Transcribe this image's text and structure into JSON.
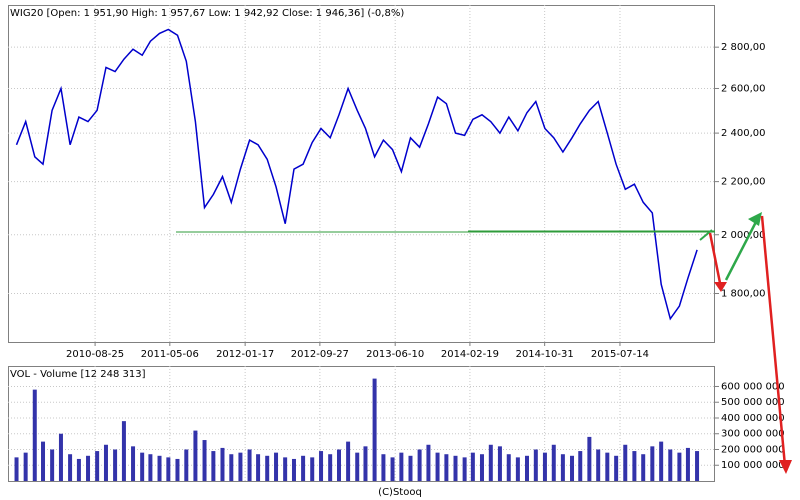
{
  "chart_data": [
    {
      "type": "line",
      "title": "WIG20 [Open: 1 951,90  High: 1 957,67  Low: 1 942,92  Close: 1 946,36] (-0,8%)",
      "color": "#0000cc",
      "log_scale": true,
      "grid": true,
      "x": [
        "2009-12-01",
        "2010-01-01",
        "2010-02-01",
        "2010-03-01",
        "2010-04-01",
        "2010-05-01",
        "2010-06-01",
        "2010-07-01",
        "2010-08-01",
        "2010-09-01",
        "2010-10-01",
        "2010-11-01",
        "2010-12-01",
        "2011-01-01",
        "2011-02-01",
        "2011-03-01",
        "2011-04-01",
        "2011-05-01",
        "2011-06-01",
        "2011-07-01",
        "2011-08-01",
        "2011-09-01",
        "2011-10-01",
        "2011-11-01",
        "2011-12-01",
        "2012-01-01",
        "2012-02-01",
        "2012-03-01",
        "2012-04-01",
        "2012-05-01",
        "2012-06-01",
        "2012-07-01",
        "2012-08-01",
        "2012-09-01",
        "2012-10-01",
        "2012-11-01",
        "2012-12-01",
        "2013-01-01",
        "2013-02-01",
        "2013-03-01",
        "2013-04-01",
        "2013-05-01",
        "2013-06-01",
        "2013-07-01",
        "2013-08-01",
        "2013-09-01",
        "2013-10-01",
        "2013-11-01",
        "2013-12-01",
        "2014-01-01",
        "2014-02-01",
        "2014-03-01",
        "2014-04-01",
        "2014-05-01",
        "2014-06-01",
        "2014-07-01",
        "2014-08-01",
        "2014-09-01",
        "2014-10-01",
        "2014-11-01",
        "2014-12-01",
        "2015-01-01",
        "2015-02-01",
        "2015-03-01",
        "2015-04-01",
        "2015-05-01",
        "2015-06-01",
        "2015-07-01",
        "2015-08-01",
        "2015-09-01",
        "2015-10-01",
        "2015-11-01",
        "2015-12-01",
        "2016-01-01",
        "2016-02-01",
        "2016-03-01",
        "2016-04-01"
      ],
      "values": [
        2350,
        2450,
        2300,
        2270,
        2500,
        2600,
        2350,
        2470,
        2450,
        2500,
        2700,
        2680,
        2740,
        2790,
        2760,
        2830,
        2870,
        2890,
        2860,
        2730,
        2450,
        2100,
        2150,
        2220,
        2120,
        2250,
        2370,
        2350,
        2290,
        2180,
        2040,
        2250,
        2270,
        2360,
        2420,
        2380,
        2480,
        2600,
        2500,
        2420,
        2300,
        2370,
        2330,
        2240,
        2380,
        2340,
        2440,
        2560,
        2530,
        2400,
        2390,
        2460,
        2480,
        2450,
        2400,
        2470,
        2410,
        2490,
        2540,
        2420,
        2380,
        2320,
        2380,
        2440,
        2500,
        2540,
        2400,
        2270,
        2170,
        2190,
        2120,
        2080,
        1830,
        1720,
        1760,
        1850,
        1946.36
      ],
      "xlim": [
        "2009-11-02",
        "2016-06-01"
      ],
      "xticks": [
        "2010-08-25",
        "2011-05-06",
        "2012-01-17",
        "2012-09-27",
        "2013-06-10",
        "2014-02-19",
        "2014-10-31",
        "2015-07-14"
      ],
      "ylim": [
        1650,
        3020
      ],
      "yticks": [
        {
          "value": 1800,
          "label": "1 800,00"
        },
        {
          "value": 2000,
          "label": "2 000,00"
        },
        {
          "value": 2200,
          "label": "2 200,00"
        },
        {
          "value": 2400,
          "label": "2 400,00"
        },
        {
          "value": 2600,
          "label": "2 600,00"
        },
        {
          "value": 2800,
          "label": "2 800,00"
        }
      ]
    },
    {
      "type": "bar",
      "title": "VOL - Volume [12 248 313]",
      "color": "#3333aa",
      "grid": true,
      "values": [
        150000000,
        180000000,
        580000000,
        250000000,
        200000000,
        300000000,
        170000000,
        140000000,
        160000000,
        190000000,
        230000000,
        200000000,
        380000000,
        220000000,
        180000000,
        170000000,
        160000000,
        150000000,
        140000000,
        200000000,
        320000000,
        260000000,
        190000000,
        210000000,
        170000000,
        180000000,
        200000000,
        170000000,
        160000000,
        180000000,
        150000000,
        140000000,
        160000000,
        150000000,
        190000000,
        170000000,
        200000000,
        250000000,
        180000000,
        220000000,
        650000000,
        170000000,
        150000000,
        180000000,
        160000000,
        200000000,
        230000000,
        180000000,
        170000000,
        160000000,
        150000000,
        180000000,
        170000000,
        230000000,
        220000000,
        170000000,
        150000000,
        160000000,
        200000000,
        180000000,
        230000000,
        170000000,
        160000000,
        190000000,
        280000000,
        200000000,
        180000000,
        160000000,
        230000000,
        190000000,
        170000000,
        220000000,
        250000000,
        200000000,
        180000000,
        210000000,
        190000000
      ],
      "ylim": [
        0,
        730000000
      ],
      "yticks": [
        {
          "value": 100000000,
          "label": "100 000 000"
        },
        {
          "value": 200000000,
          "label": "200 000 000"
        },
        {
          "value": 300000000,
          "label": "300 000 000"
        },
        {
          "value": 400000000,
          "label": "400 000 000"
        },
        {
          "value": 500000000,
          "label": "500 000 000"
        },
        {
          "value": 600000000,
          "label": "600 000 000"
        }
      ]
    }
  ],
  "footer": "(C)Stooq"
}
